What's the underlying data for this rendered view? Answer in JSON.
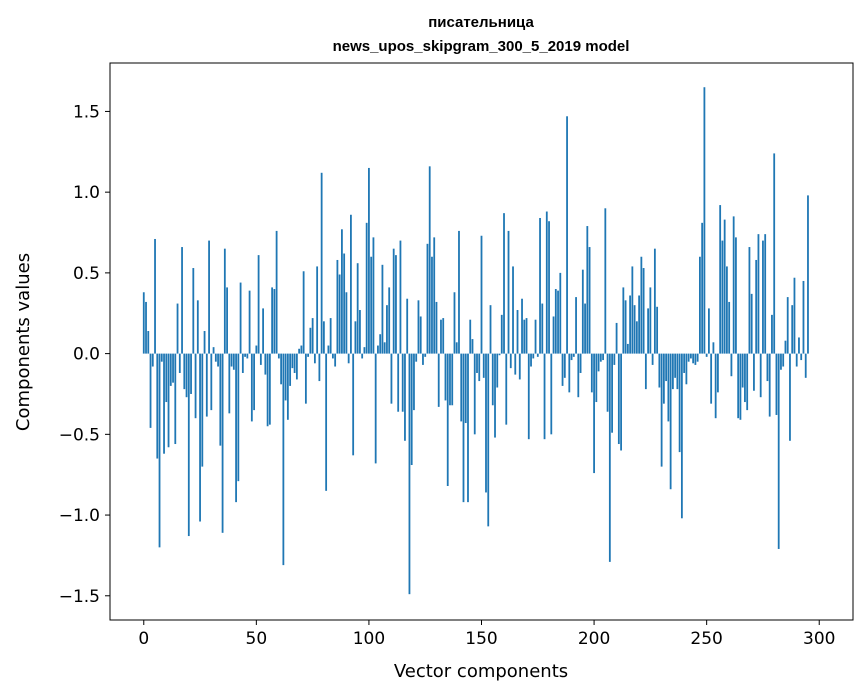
{
  "chart_data": {
    "type": "bar",
    "title": "писательница",
    "subtitle": "news_upos_skipgram_300_5_2019 model",
    "xlabel": "Vector components",
    "ylabel": "Components values",
    "xlim": [
      -15,
      315
    ],
    "ylim": [
      -1.65,
      1.8
    ],
    "xticks": [
      0,
      50,
      100,
      150,
      200,
      250,
      300
    ],
    "yticks": [
      -1.5,
      -1.0,
      -0.5,
      0.0,
      0.5,
      1.0,
      1.5
    ],
    "xtick_labels": [
      "0",
      "50",
      "100",
      "150",
      "200",
      "250",
      "300"
    ],
    "ytick_labels": [
      "−1.5",
      "−1.0",
      "−0.5",
      "0.0",
      "0.5",
      "1.0",
      "1.5"
    ],
    "bar_color": "#1f77b4",
    "values": [
      0.38,
      0.32,
      0.14,
      -0.46,
      -0.08,
      0.71,
      -0.65,
      -1.2,
      -0.05,
      -0.62,
      -0.3,
      -0.58,
      -0.2,
      -0.18,
      -0.56,
      0.31,
      -0.12,
      0.66,
      -0.22,
      -0.27,
      -1.13,
      -0.25,
      0.53,
      -0.4,
      0.33,
      -1.04,
      -0.7,
      0.14,
      -0.39,
      0.7,
      -0.35,
      0.04,
      -0.05,
      -0.08,
      -0.57,
      -1.11,
      0.65,
      0.41,
      -0.37,
      -0.08,
      -0.1,
      -0.92,
      -0.79,
      0.44,
      -0.12,
      -0.02,
      -0.03,
      0.39,
      -0.42,
      -0.35,
      0.05,
      0.61,
      -0.07,
      0.28,
      -0.13,
      -0.45,
      -0.44,
      0.41,
      0.4,
      0.76,
      -0.03,
      -0.19,
      -1.31,
      -0.29,
      -0.41,
      -0.2,
      -0.09,
      -0.12,
      -0.16,
      0.03,
      0.05,
      0.51,
      -0.31,
      -0.02,
      0.16,
      0.22,
      -0.06,
      0.54,
      -0.17,
      1.12,
      0.2,
      -0.85,
      0.05,
      0.22,
      -0.03,
      -0.08,
      0.58,
      0.49,
      0.77,
      0.62,
      0.38,
      -0.06,
      0.86,
      -0.63,
      0.2,
      0.56,
      0.27,
      -0.03,
      0.04,
      0.81,
      1.15,
      0.6,
      0.72,
      -0.68,
      0.05,
      0.12,
      0.55,
      0.07,
      0.3,
      0.41,
      -0.31,
      0.65,
      0.61,
      -0.36,
      0.7,
      -0.36,
      -0.54,
      0.34,
      -1.49,
      -0.69,
      -0.35,
      -0.05,
      0.33,
      0.23,
      -0.07,
      -0.02,
      0.68,
      1.16,
      0.6,
      0.72,
      0.32,
      -0.33,
      0.21,
      0.22,
      -0.29,
      -0.82,
      -0.32,
      -0.32,
      0.38,
      0.07,
      0.76,
      -0.42,
      -0.92,
      -0.43,
      -0.92,
      0.21,
      0.09,
      -0.5,
      -0.12,
      -0.17,
      0.73,
      -0.15,
      -0.86,
      -1.07,
      0.3,
      -0.32,
      -0.52,
      -0.21,
      -0.01,
      0.24,
      0.87,
      -0.44,
      0.76,
      -0.09,
      0.54,
      -0.13,
      0.27,
      -0.16,
      0.34,
      0.21,
      0.22,
      -0.53,
      -0.08,
      -0.03,
      0.21,
      -0.02,
      0.84,
      0.31,
      -0.53,
      0.88,
      0.82,
      -0.5,
      0.23,
      0.4,
      0.39,
      0.5,
      -0.2,
      -0.15,
      1.47,
      -0.24,
      -0.04,
      -0.02,
      0.35,
      -0.27,
      -0.12,
      0.52,
      0.31,
      0.79,
      0.66,
      -0.24,
      -0.74,
      -0.3,
      -0.11,
      -0.05,
      -0.04,
      0.9,
      -0.36,
      -1.29,
      -0.49,
      -0.07,
      0.19,
      -0.56,
      -0.6,
      0.41,
      0.33,
      0.06,
      0.36,
      0.54,
      0.3,
      0.2,
      0.36,
      0.6,
      0.53,
      -0.22,
      0.28,
      0.41,
      -0.07,
      0.65,
      0.29,
      -0.21,
      -0.7,
      -0.31,
      -0.17,
      -0.42,
      -0.84,
      -0.22,
      -0.15,
      -0.22,
      -0.61,
      -1.02,
      -0.12,
      -0.19,
      -0.05,
      -0.03,
      -0.06,
      -0.07,
      -0.05,
      0.6,
      0.81,
      1.65,
      -0.02,
      0.28,
      -0.31,
      0.07,
      -0.4,
      -0.24,
      0.92,
      0.7,
      0.83,
      0.54,
      0.32,
      -0.14,
      0.85,
      0.72,
      -0.4,
      -0.41,
      -0.21,
      -0.3,
      -0.35,
      0.66,
      0.37,
      -0.23,
      0.58,
      0.74,
      -0.27,
      0.7,
      0.74,
      -0.17,
      -0.39,
      0.24,
      1.24,
      -0.38,
      -1.21,
      -0.1,
      -0.08,
      0.08,
      0.35,
      -0.54,
      0.3,
      0.47,
      -0.08,
      0.1,
      -0.04,
      0.45,
      -0.15,
      0.98
    ]
  }
}
